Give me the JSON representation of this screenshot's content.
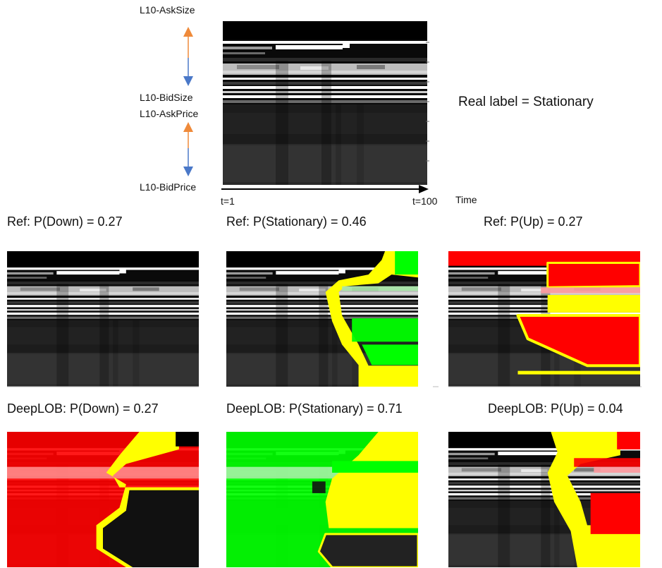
{
  "labels": {
    "ask_size": "L10-AskSize",
    "bid_size": "L10-BidSize",
    "ask_price": "L10-AskPrice",
    "bid_price": "L10-BidPrice",
    "t_start": "t=1",
    "t_end": "t=100",
    "time": "Time",
    "real_label": "Real label = Stationary"
  },
  "ref_titles": [
    "Ref: P(Down) = 0.27",
    "Ref: P(Stationary) = 0.46",
    "Ref: P(Up) = 0.27"
  ],
  "deeplob_titles": [
    "DeepLOB: P(Down) = 0.27",
    "DeepLOB: P(Stationary) = 0.71",
    "DeepLOB: P(Up) = 0.04"
  ],
  "colors": {
    "arrow_up": "#ef8a3a",
    "arrow_down": "#4a78c8",
    "highlight_down": "#ff0000",
    "highlight_stationary": "#00ff00",
    "highlight_up": "#ff0000",
    "boundary": "#ffff00"
  }
}
